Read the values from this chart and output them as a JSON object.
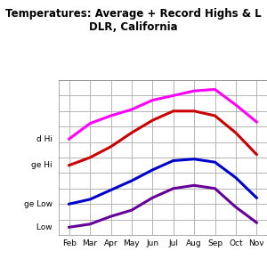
{
  "title_line1": "Temperatures: Average + Record Highs & L",
  "title_line2": "DLR, California",
  "months": [
    "Feb",
    "Mar",
    "Apr",
    "May",
    "Jun",
    "Jul",
    "Aug",
    "Sep",
    "Oct",
    "Nov"
  ],
  "record_hi": [
    82,
    92,
    97,
    101,
    107,
    110,
    113,
    114,
    104,
    93
  ],
  "avg_hi": [
    65,
    70,
    77,
    86,
    94,
    100,
    100,
    97,
    86,
    72
  ],
  "avg_low": [
    40,
    43,
    49,
    55,
    62,
    68,
    69,
    67,
    57,
    44
  ],
  "record_low": [
    25,
    27,
    32,
    36,
    44,
    50,
    52,
    50,
    38,
    28
  ],
  "colors": {
    "record_hi": "#ff00ff",
    "avg_hi": "#cc0000",
    "avg_low": "#0000cc",
    "record_low": "#660099"
  },
  "line_width": 2.2,
  "ylim": [
    20,
    120
  ],
  "ytick_step": 10,
  "legend_labels": [
    "Record Hi",
    "Average Hi",
    "Average Low",
    "Record Low"
  ],
  "bg_color": "#ffffff",
  "grid_color": "#aaaaaa",
  "title_fontsize": 8.5,
  "label_fontsize": 6.5
}
